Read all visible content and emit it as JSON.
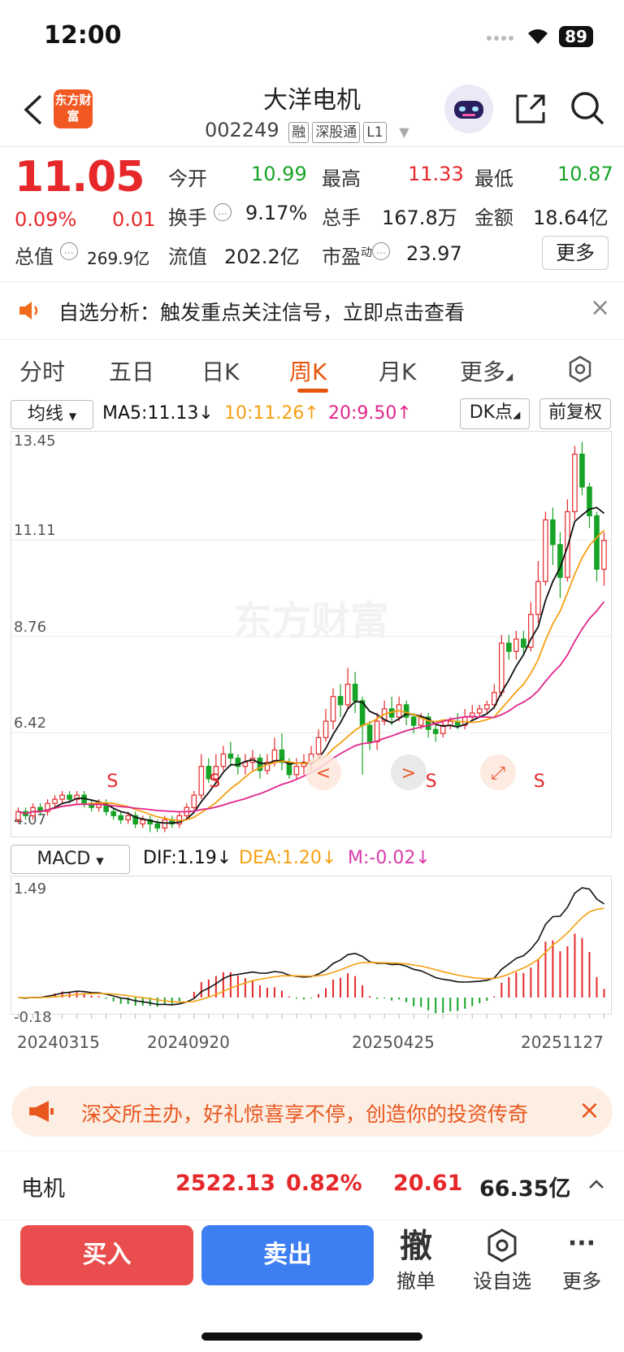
{
  "status_bar": {
    "time": "12:00",
    "battery": "89"
  },
  "header": {
    "logo_text": "东方财富",
    "stock_name": "大洋电机",
    "stock_code": "002249",
    "tags": [
      "融",
      "深股通",
      "L1"
    ]
  },
  "quote": {
    "price": "11.05",
    "change_pct": "0.09%",
    "change": "0.01",
    "open_label": "今开",
    "open": "10.99",
    "high_label": "最高",
    "high": "11.33",
    "low_label": "最低",
    "low": "10.87",
    "turnover_label": "换手",
    "turnover": "9.17%",
    "volume_label": "总手",
    "volume": "167.8万",
    "amount_label": "金额",
    "amount": "18.64亿",
    "mktcap_label": "总值",
    "mktcap": "269.9亿",
    "float_label": "流值",
    "float_cap": "202.2亿",
    "pe_label": "市盈",
    "pe_sup": "动",
    "pe": "23.97",
    "more": "更多"
  },
  "alert": {
    "text": "自选分析：触发重点关注信号，立即点击查看",
    "close": "×"
  },
  "tabs": [
    {
      "label": "分时"
    },
    {
      "label": "五日"
    },
    {
      "label": "日K"
    },
    {
      "label": "周K",
      "active": true
    },
    {
      "label": "月K"
    },
    {
      "label": "更多"
    }
  ],
  "chart_controls": {
    "ma_select": "均线",
    "ma5": "MA5:11.13↓",
    "ma10": "10:11.26↑",
    "ma20": "20:9.50↑",
    "dk": "DK点",
    "adjust": "前复权",
    "macd_select": "MACD",
    "dif": "DIF:1.19↓",
    "dea": "DEA:1.20↓",
    "m": "M:-0.02↓",
    "colors": {
      "ma5": "#111111",
      "ma10": "#f5a012",
      "ma20": "#e0268a",
      "up": "#e6282b",
      "down": "#17a326"
    }
  },
  "chart_data": [
    {
      "type": "candlestick",
      "title": "周K",
      "y_ticks": [
        "13.45",
        "11.11",
        "8.76",
        "6.42",
        "4.07"
      ],
      "ylim": [
        4.07,
        13.45
      ],
      "signals": [
        "S",
        "S",
        "S",
        "S"
      ],
      "candles": [
        [
          4.3,
          4.5,
          4.6,
          4.2
        ],
        [
          4.5,
          4.4,
          4.6,
          4.3
        ],
        [
          4.4,
          4.6,
          4.7,
          4.3
        ],
        [
          4.6,
          4.5,
          4.7,
          4.4
        ],
        [
          4.5,
          4.7,
          4.8,
          4.4
        ],
        [
          4.7,
          4.8,
          4.9,
          4.6
        ],
        [
          4.8,
          4.9,
          5.0,
          4.7
        ],
        [
          4.9,
          4.8,
          5.0,
          4.7
        ],
        [
          4.8,
          4.9,
          5.0,
          4.7
        ],
        [
          4.9,
          4.7,
          5.0,
          4.6
        ],
        [
          4.7,
          4.6,
          4.8,
          4.5
        ],
        [
          4.6,
          4.7,
          4.8,
          4.5
        ],
        [
          4.7,
          4.5,
          4.8,
          4.4
        ],
        [
          4.5,
          4.4,
          4.6,
          4.3
        ],
        [
          4.4,
          4.3,
          4.5,
          4.2
        ],
        [
          4.3,
          4.4,
          4.5,
          4.2
        ],
        [
          4.4,
          4.2,
          4.5,
          4.1
        ],
        [
          4.2,
          4.3,
          4.4,
          4.1
        ],
        [
          4.3,
          4.2,
          4.4,
          4.0
        ],
        [
          4.2,
          4.1,
          4.3,
          4.0
        ],
        [
          4.1,
          4.3,
          4.4,
          4.0
        ],
        [
          4.3,
          4.2,
          4.4,
          4.1
        ],
        [
          4.2,
          4.4,
          4.5,
          4.1
        ],
        [
          4.4,
          4.6,
          4.7,
          4.3
        ],
        [
          4.6,
          4.9,
          5.0,
          4.5
        ],
        [
          4.9,
          5.6,
          5.9,
          4.8
        ],
        [
          5.6,
          5.3,
          5.8,
          5.2
        ],
        [
          5.3,
          5.6,
          5.9,
          5.2
        ],
        [
          5.6,
          5.9,
          6.1,
          5.5
        ],
        [
          5.9,
          5.8,
          6.2,
          5.6
        ],
        [
          5.8,
          5.6,
          5.9,
          5.4
        ],
        [
          5.6,
          5.7,
          5.9,
          5.4
        ],
        [
          5.7,
          5.8,
          6.0,
          5.5
        ],
        [
          5.8,
          5.5,
          5.9,
          5.3
        ],
        [
          5.5,
          5.7,
          5.9,
          5.4
        ],
        [
          5.7,
          6.0,
          6.3,
          5.6
        ],
        [
          6.0,
          5.7,
          6.4,
          5.5
        ],
        [
          5.7,
          5.4,
          5.8,
          5.3
        ],
        [
          5.4,
          5.6,
          5.8,
          5.3
        ],
        [
          5.6,
          5.7,
          5.9,
          5.4
        ],
        [
          5.7,
          5.9,
          6.1,
          5.5
        ],
        [
          5.9,
          6.3,
          6.5,
          5.8
        ],
        [
          6.3,
          6.7,
          7.0,
          6.2
        ],
        [
          6.7,
          7.3,
          7.5,
          6.5
        ],
        [
          7.3,
          7.1,
          7.6,
          6.8
        ],
        [
          7.1,
          7.6,
          8.0,
          7.0
        ],
        [
          7.6,
          7.2,
          7.9,
          6.9
        ],
        [
          7.2,
          6.6,
          7.3,
          5.4
        ],
        [
          6.6,
          6.2,
          6.7,
          6.0
        ],
        [
          6.2,
          6.7,
          6.9,
          6.0
        ],
        [
          6.7,
          7.0,
          7.2,
          6.6
        ],
        [
          7.0,
          6.8,
          7.3,
          6.6
        ],
        [
          6.8,
          7.1,
          7.3,
          6.7
        ],
        [
          7.1,
          6.8,
          7.2,
          6.6
        ],
        [
          6.8,
          6.6,
          6.9,
          6.4
        ],
        [
          6.6,
          6.8,
          6.9,
          6.5
        ],
        [
          6.8,
          6.5,
          6.9,
          6.3
        ],
        [
          6.5,
          6.4,
          6.6,
          6.2
        ],
        [
          6.4,
          6.6,
          6.7,
          6.3
        ],
        [
          6.6,
          6.7,
          6.8,
          6.5
        ],
        [
          6.7,
          6.6,
          6.9,
          6.5
        ],
        [
          6.6,
          6.8,
          7.0,
          6.5
        ],
        [
          6.8,
          6.9,
          7.1,
          6.7
        ],
        [
          6.9,
          7.0,
          7.1,
          6.8
        ],
        [
          7.0,
          7.1,
          7.2,
          6.9
        ],
        [
          7.1,
          7.4,
          7.6,
          7.0
        ],
        [
          7.4,
          8.6,
          8.8,
          7.3
        ],
        [
          8.6,
          8.4,
          8.8,
          8.2
        ],
        [
          8.4,
          8.7,
          8.9,
          8.2
        ],
        [
          8.7,
          8.5,
          8.9,
          8.3
        ],
        [
          8.5,
          9.3,
          9.6,
          8.4
        ],
        [
          9.3,
          10.1,
          10.6,
          9.1
        ],
        [
          10.1,
          11.6,
          11.8,
          10.0
        ],
        [
          11.6,
          11.0,
          11.9,
          10.5
        ],
        [
          11.0,
          10.2,
          11.3,
          9.7
        ],
        [
          10.2,
          11.8,
          12.1,
          10.1
        ],
        [
          11.8,
          13.2,
          13.4,
          11.6
        ],
        [
          13.2,
          12.4,
          13.5,
          12.2
        ],
        [
          12.4,
          11.7,
          12.5,
          11.4
        ],
        [
          11.7,
          10.4,
          11.8,
          10.1
        ],
        [
          10.4,
          11.1,
          11.3,
          10.0
        ]
      ]
    },
    {
      "type": "macd",
      "title": "MACD",
      "y_ticks": [
        "1.49",
        "-0.18"
      ],
      "ylim": [
        -0.18,
        1.49
      ],
      "x_ticks": [
        "20240315",
        "20240920",
        "20250425",
        "20251127"
      ]
    }
  ],
  "notice": {
    "text": "深交所主办，好礼惊喜享不停，创造你的投资传奇",
    "close": "×"
  },
  "sector": {
    "name": "电机",
    "index": "2522.13",
    "pct": "0.82%",
    "change": "20.61",
    "amount": "66.35亿"
  },
  "bottom_bar": {
    "buy": "买入",
    "sell": "卖出",
    "cancel_icon_text": "撤",
    "cancel": "撤单",
    "watch": "设自选",
    "more": "更多"
  },
  "watermark": "东方财富"
}
